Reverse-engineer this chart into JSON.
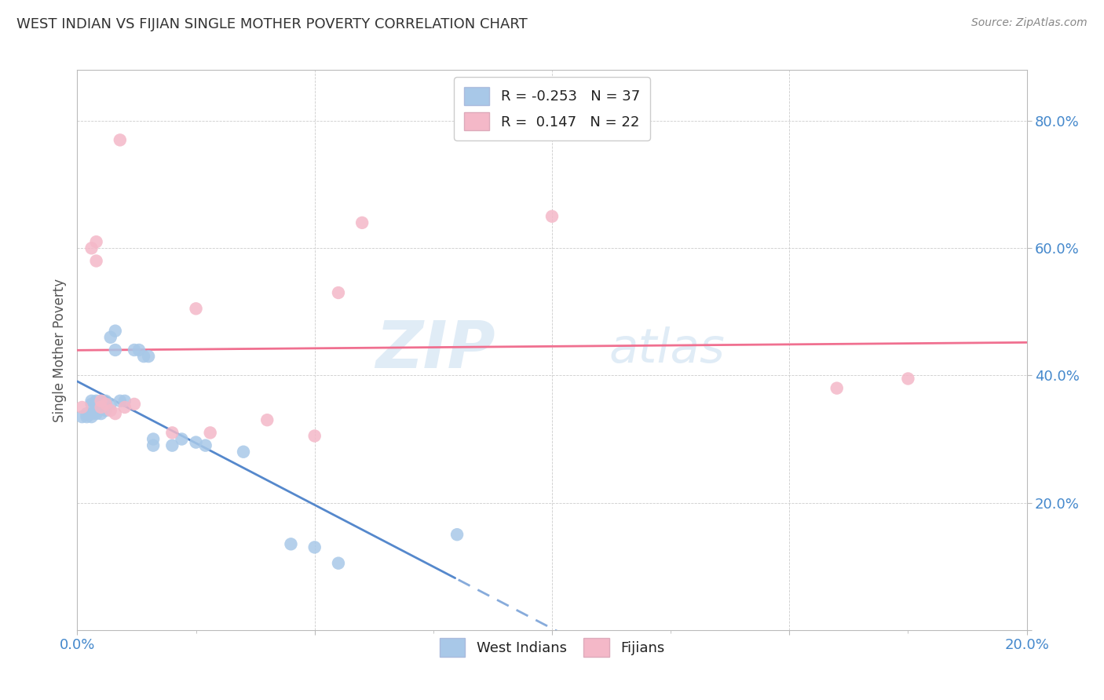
{
  "title": "WEST INDIAN VS FIJIAN SINGLE MOTHER POVERTY CORRELATION CHART",
  "source": "Source: ZipAtlas.com",
  "ylabel": "Single Mother Poverty",
  "xlim": [
    0.0,
    0.2
  ],
  "ylim": [
    0.0,
    0.88
  ],
  "x_ticks": [
    0.0,
    0.05,
    0.1,
    0.15,
    0.2
  ],
  "y_ticks": [
    0.0,
    0.2,
    0.4,
    0.6,
    0.8
  ],
  "west_indian_r": -0.253,
  "west_indian_n": 37,
  "fijian_r": 0.147,
  "fijian_n": 22,
  "west_indian_color": "#a8c8e8",
  "fijian_color": "#f4b8c8",
  "west_indian_line_color": "#5588cc",
  "fijian_line_color": "#f07090",
  "watermark_zip": "ZIP",
  "watermark_atlas": "atlas",
  "west_indian_x": [
    0.001,
    0.002,
    0.002,
    0.003,
    0.003,
    0.003,
    0.003,
    0.004,
    0.004,
    0.004,
    0.004,
    0.005,
    0.005,
    0.005,
    0.006,
    0.006,
    0.007,
    0.007,
    0.008,
    0.008,
    0.009,
    0.01,
    0.012,
    0.013,
    0.014,
    0.015,
    0.016,
    0.016,
    0.02,
    0.022,
    0.025,
    0.027,
    0.035,
    0.045,
    0.05,
    0.055,
    0.08
  ],
  "west_indian_y": [
    0.335,
    0.335,
    0.34,
    0.335,
    0.34,
    0.355,
    0.36,
    0.34,
    0.345,
    0.355,
    0.36,
    0.34,
    0.35,
    0.36,
    0.345,
    0.36,
    0.355,
    0.46,
    0.44,
    0.47,
    0.36,
    0.36,
    0.44,
    0.44,
    0.43,
    0.43,
    0.29,
    0.3,
    0.29,
    0.3,
    0.295,
    0.29,
    0.28,
    0.135,
    0.13,
    0.105,
    0.15
  ],
  "fijian_x": [
    0.001,
    0.003,
    0.004,
    0.004,
    0.005,
    0.005,
    0.006,
    0.007,
    0.008,
    0.009,
    0.01,
    0.012,
    0.02,
    0.025,
    0.028,
    0.04,
    0.05,
    0.055,
    0.06,
    0.1,
    0.16,
    0.175
  ],
  "fijian_y": [
    0.35,
    0.6,
    0.58,
    0.61,
    0.35,
    0.36,
    0.355,
    0.345,
    0.34,
    0.77,
    0.35,
    0.355,
    0.31,
    0.505,
    0.31,
    0.33,
    0.305,
    0.53,
    0.64,
    0.65,
    0.38,
    0.395
  ]
}
